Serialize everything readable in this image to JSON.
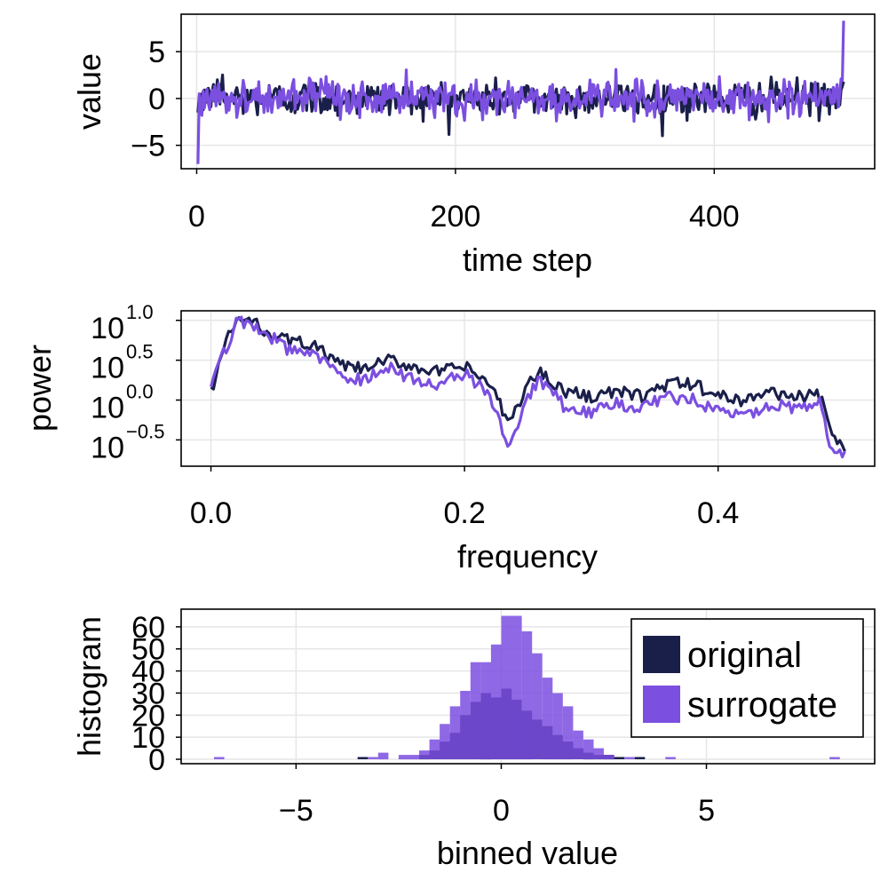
{
  "colors": {
    "original": "#1a1f4a",
    "surrogate": "#7b4fe0",
    "grid": "#e6e6e6",
    "axis": "#000000",
    "background": "#ffffff"
  },
  "chart_data": [
    {
      "type": "line",
      "xlabel": "time step",
      "ylabel": "value",
      "xlim": [
        -12,
        524
      ],
      "ylim": [
        -7.5,
        9
      ],
      "xticks": [
        0,
        200,
        400
      ],
      "xtick_labels": [
        "0",
        "200",
        "400"
      ],
      "yticks": [
        -5,
        0,
        5
      ],
      "ytick_labels": [
        "−5",
        "0",
        "5"
      ],
      "grid": true,
      "n_points": 500,
      "series": [
        {
          "name": "original",
          "x_start": 1,
          "x_step": 1,
          "y_range_approx": [
            -3.5,
            3.5
          ],
          "first_values": [
            -1.5,
            0.3,
            -0.8,
            0.5,
            -1.2,
            0.9,
            0.2,
            -0.4,
            1.1,
            0.6,
            -0.9,
            0.8,
            1.5,
            -0.3,
            0.7,
            2.0,
            0.4,
            -0.6,
            1.2,
            2.5
          ],
          "last_values": [
            0.2,
            -0.5,
            0.8,
            -1.0,
            1.1,
            0.4,
            -0.7,
            0.9,
            1.3,
            1.8
          ]
        },
        {
          "name": "surrogate",
          "x_start": 1,
          "x_step": 1,
          "y_range_approx": [
            -7,
            8.3
          ],
          "first_values": [
            -7.0,
            0.5,
            -0.3,
            -1.8,
            0.8,
            -1.0,
            0.2,
            1.0,
            -0.5,
            -1.2,
            0.3,
            0.9,
            -0.2,
            1.3,
            -0.8,
            0.4,
            1.6,
            -0.4,
            0.6,
            0.1
          ],
          "last_values": [
            -0.6,
            1.2,
            -0.4,
            0.8,
            1.5,
            -0.9,
            0.5,
            2.1,
            1.9,
            8.3
          ]
        }
      ]
    },
    {
      "type": "line",
      "xlabel": "frequency",
      "ylabel": "power",
      "xscale": "linear",
      "yscale": "log10",
      "xlim": [
        -0.0235,
        0.5235
      ],
      "ylim_log10": [
        -0.83,
        1.12
      ],
      "xticks": [
        0.0,
        0.2,
        0.4
      ],
      "xtick_labels": [
        "0.0",
        "0.2",
        "0.4"
      ],
      "yticks_log10": [
        -0.5,
        0.0,
        0.5,
        1.0
      ],
      "ytick_base": "10",
      "ytick_exponents": [
        "−0.5",
        "0.0",
        "0.5",
        "1.0"
      ],
      "grid": true,
      "n_points": 251,
      "x_step": 0.002,
      "series": [
        {
          "name": "original",
          "log10_power_envelope": [
            [
              0.0,
              0.1
            ],
            [
              0.01,
              0.65
            ],
            [
              0.02,
              1.0
            ],
            [
              0.03,
              1.0
            ],
            [
              0.045,
              0.85
            ],
            [
              0.06,
              0.75
            ],
            [
              0.08,
              0.7
            ],
            [
              0.1,
              0.45
            ],
            [
              0.12,
              0.38
            ],
            [
              0.14,
              0.5
            ],
            [
              0.16,
              0.42
            ],
            [
              0.18,
              0.35
            ],
            [
              0.2,
              0.42
            ],
            [
              0.22,
              0.2
            ],
            [
              0.235,
              -0.3
            ],
            [
              0.25,
              0.2
            ],
            [
              0.26,
              0.35
            ],
            [
              0.28,
              0.1
            ],
            [
              0.3,
              0.05
            ],
            [
              0.32,
              0.1
            ],
            [
              0.34,
              0.05
            ],
            [
              0.36,
              0.2
            ],
            [
              0.38,
              0.2
            ],
            [
              0.4,
              0.05
            ],
            [
              0.42,
              0.0
            ],
            [
              0.44,
              0.1
            ],
            [
              0.46,
              0.05
            ],
            [
              0.48,
              0.05
            ],
            [
              0.49,
              -0.4
            ],
            [
              0.5,
              -0.7
            ]
          ]
        },
        {
          "name": "surrogate",
          "log10_power_envelope": [
            [
              0.0,
              0.12
            ],
            [
              0.01,
              0.6
            ],
            [
              0.02,
              0.95
            ],
            [
              0.03,
              1.0
            ],
            [
              0.045,
              0.82
            ],
            [
              0.06,
              0.65
            ],
            [
              0.08,
              0.6
            ],
            [
              0.1,
              0.3
            ],
            [
              0.12,
              0.25
            ],
            [
              0.14,
              0.42
            ],
            [
              0.16,
              0.25
            ],
            [
              0.18,
              0.18
            ],
            [
              0.2,
              0.35
            ],
            [
              0.22,
              0.05
            ],
            [
              0.235,
              -0.55
            ],
            [
              0.25,
              0.05
            ],
            [
              0.26,
              0.25
            ],
            [
              0.28,
              -0.1
            ],
            [
              0.3,
              -0.15
            ],
            [
              0.32,
              -0.05
            ],
            [
              0.34,
              -0.1
            ],
            [
              0.36,
              0.05
            ],
            [
              0.38,
              0.0
            ],
            [
              0.4,
              -0.15
            ],
            [
              0.42,
              -0.2
            ],
            [
              0.44,
              -0.05
            ],
            [
              0.46,
              -0.1
            ],
            [
              0.48,
              -0.05
            ],
            [
              0.49,
              -0.65
            ],
            [
              0.5,
              -0.65
            ]
          ]
        }
      ]
    },
    {
      "type": "bar",
      "subtype": "histogram",
      "xlabel": "binned value",
      "ylabel": "histogram",
      "xlim": [
        -7.8,
        9.1
      ],
      "ylim": [
        -2,
        68
      ],
      "xticks": [
        -5,
        0,
        5
      ],
      "xtick_labels": [
        "−5",
        "0",
        "5"
      ],
      "yticks": [
        0,
        10,
        20,
        30,
        40,
        50,
        60
      ],
      "ytick_labels": [
        "0",
        "10",
        "20",
        "30",
        "40",
        "50",
        "60"
      ],
      "grid": true,
      "legend": "top-right",
      "bin_width": 0.25,
      "bin_edges_start": -7.0,
      "series": [
        {
          "name": "original",
          "bin_starts": [
            -3.5,
            -2.0,
            -1.75,
            -1.5,
            -1.25,
            -1.0,
            -0.75,
            -0.5,
            -0.25,
            0.0,
            0.25,
            0.5,
            0.75,
            1.0,
            1.25,
            1.5,
            1.75,
            2.0,
            2.25,
            2.5,
            2.75,
            3.25
          ],
          "counts": [
            1,
            2,
            4,
            8,
            12,
            20,
            26,
            30,
            28,
            32,
            27,
            22,
            18,
            15,
            11,
            8,
            5,
            3,
            2,
            2,
            1,
            1
          ]
        },
        {
          "name": "surrogate",
          "bin_starts": [
            -7.0,
            -3.25,
            -3.0,
            -2.5,
            -2.25,
            -2.0,
            -1.75,
            -1.5,
            -1.25,
            -1.0,
            -0.75,
            -0.5,
            -0.25,
            0.0,
            0.25,
            0.5,
            0.75,
            1.0,
            1.25,
            1.5,
            1.75,
            2.0,
            2.25,
            2.5,
            3.0,
            4.0,
            8.0
          ],
          "counts": [
            1,
            1,
            3,
            2,
            2,
            4,
            9,
            16,
            24,
            31,
            44,
            44,
            52,
            65,
            65,
            58,
            48,
            37,
            30,
            24,
            13,
            9,
            5,
            2,
            1,
            1,
            1
          ]
        }
      ]
    }
  ],
  "legend": {
    "items": [
      {
        "label": "original",
        "color_key": "original"
      },
      {
        "label": "surrogate",
        "color_key": "surrogate"
      }
    ]
  }
}
